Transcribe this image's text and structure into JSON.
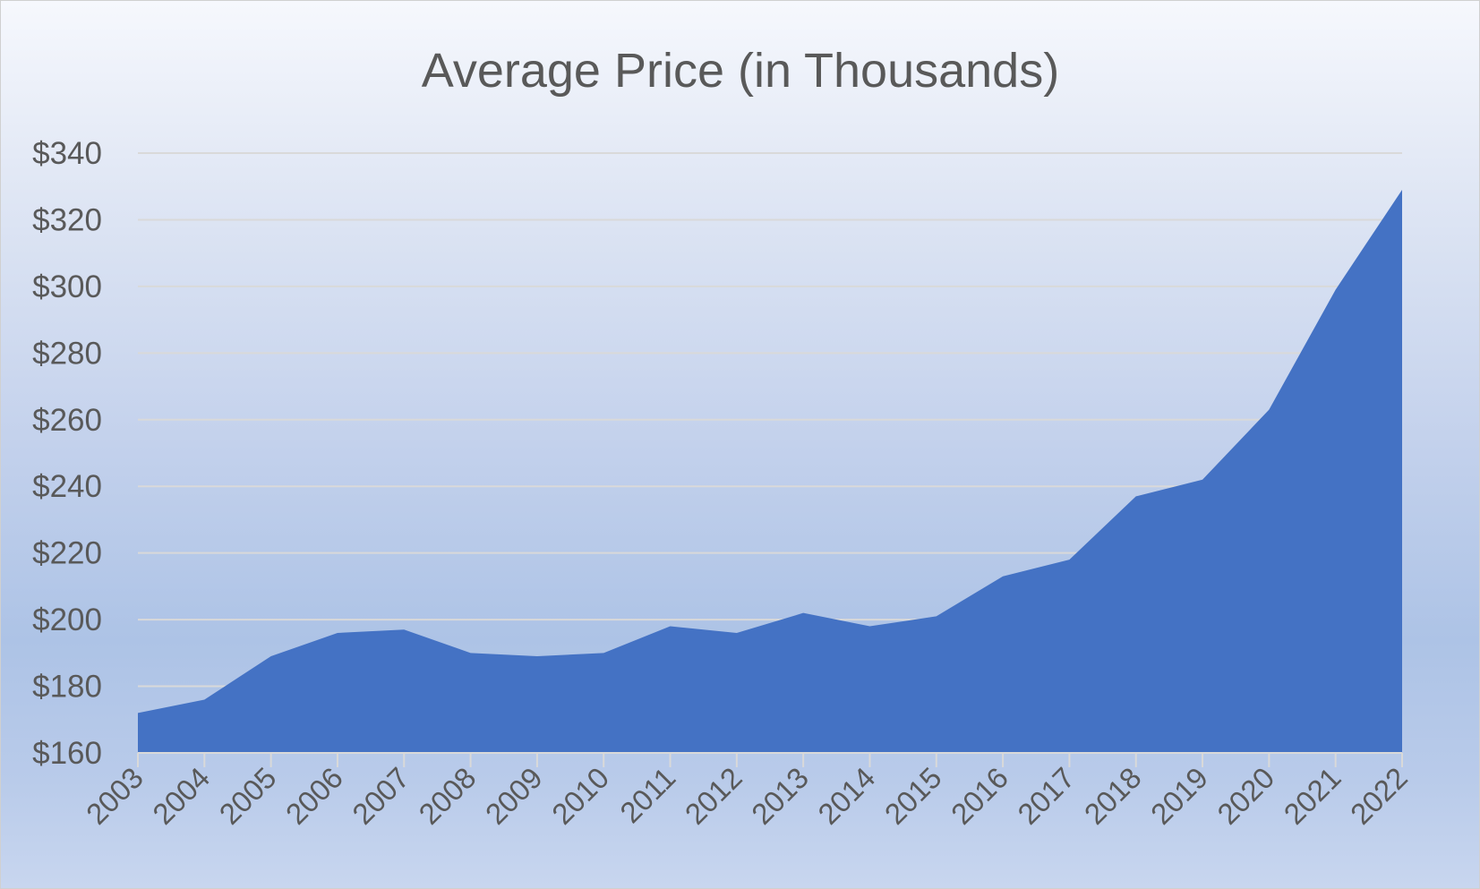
{
  "chart_data": {
    "type": "area",
    "title": "Average Price (in Thousands)",
    "xlabel": "",
    "ylabel": "",
    "ylim": [
      160,
      340
    ],
    "y_ticks": [
      160,
      180,
      200,
      220,
      240,
      260,
      280,
      300,
      320,
      340
    ],
    "y_tick_labels": [
      "$160",
      "$180",
      "$200",
      "$220",
      "$240",
      "$260",
      "$280",
      "$300",
      "$320",
      "$340"
    ],
    "categories": [
      "2003",
      "2004",
      "2005",
      "2006",
      "2007",
      "2008",
      "2009",
      "2010",
      "2011",
      "2012",
      "2013",
      "2014",
      "2015",
      "2016",
      "2017",
      "2018",
      "2019",
      "2020",
      "2021",
      "2022"
    ],
    "series": [
      {
        "values": [
          172,
          176,
          189,
          196,
          197,
          190,
          189,
          190,
          198,
          196,
          202,
          198,
          201,
          213,
          218,
          237,
          242,
          263,
          299,
          329
        ]
      }
    ],
    "grid": true,
    "legend": "none",
    "colors": {
      "area": "#4472c4",
      "gridline": "#d9d9d9",
      "text": "#595959"
    }
  }
}
